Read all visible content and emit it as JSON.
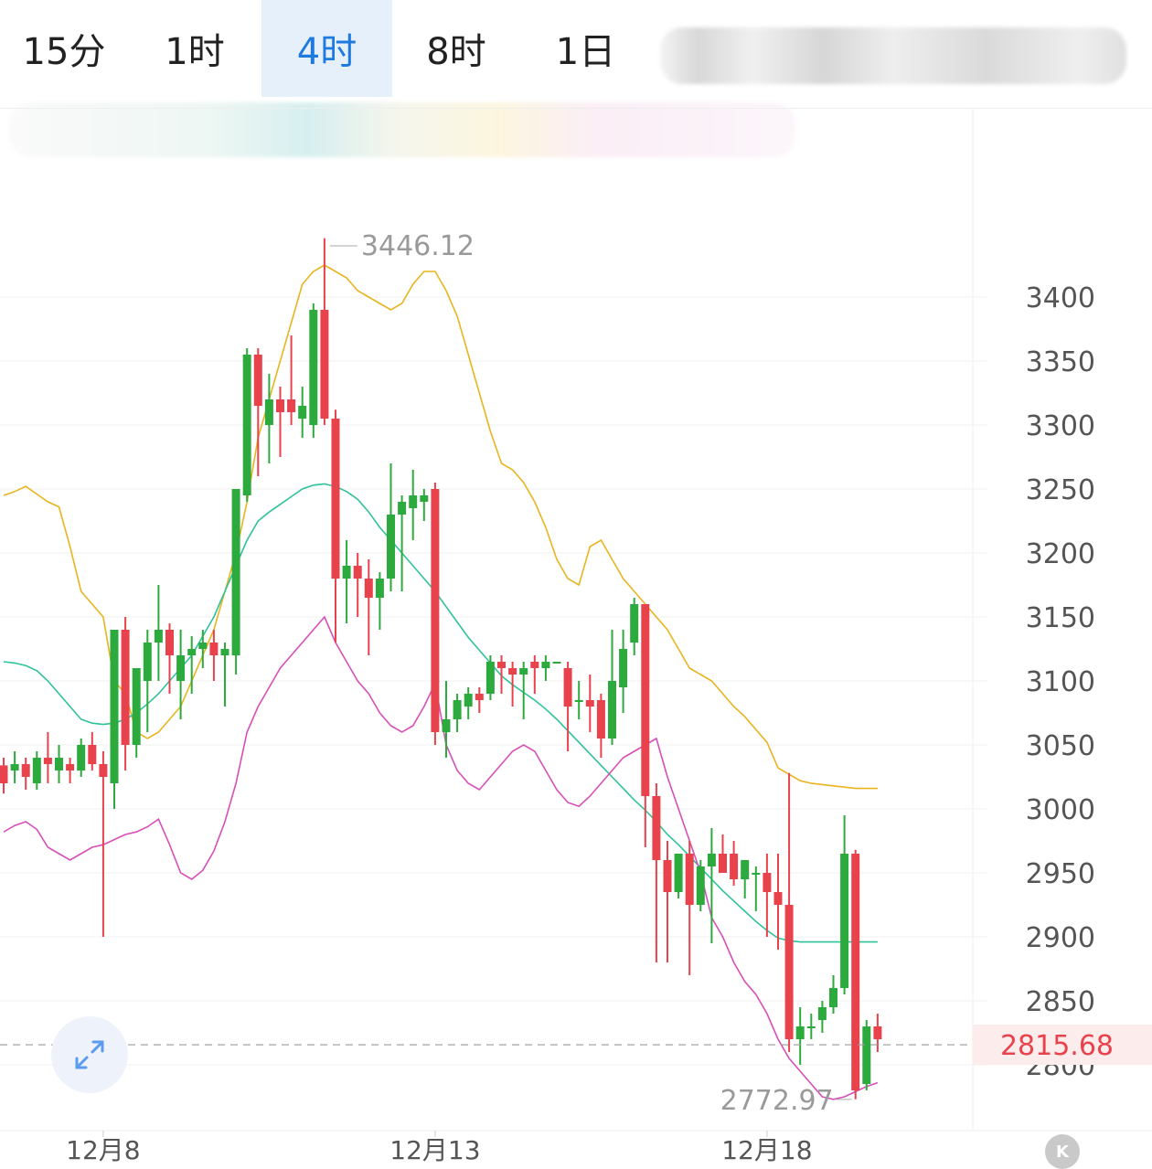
{
  "tabs": [
    {
      "label": "15分",
      "active": false
    },
    {
      "label": "1时",
      "active": false
    },
    {
      "label": "4时",
      "active": true
    },
    {
      "label": "8时",
      "active": false
    },
    {
      "label": "1日",
      "active": false
    }
  ],
  "colors": {
    "up": "#2daa3d",
    "down": "#e8424c",
    "upper_band": "#e8b41f",
    "middle_band": "#2ec29b",
    "lower_band": "#d84fb8",
    "active_tab": "#1f7ae0",
    "price_label": "#e8424c"
  },
  "icons": {
    "expand": "expand-arrows-icon",
    "logo": "k-logo-icon"
  },
  "chart_data": {
    "type": "candlestick",
    "ylim": [
      2740,
      3470
    ],
    "y_ticks": [
      2800,
      2850,
      2900,
      2950,
      3000,
      3050,
      3100,
      3150,
      3200,
      3250,
      3300,
      3350,
      3400
    ],
    "x_tick_labels": [
      {
        "label": "12月8",
        "index": 9
      },
      {
        "label": "12月13",
        "index": 39
      },
      {
        "label": "12月18",
        "index": 69
      }
    ],
    "grid": true,
    "current_price": "2815.68",
    "high_marker": {
      "value": "3446.12",
      "index": 29
    },
    "low_marker": {
      "value": "2772.97",
      "index": 77
    },
    "candles": [
      [
        3034,
        3040,
        3012,
        3020
      ],
      [
        3030,
        3045,
        3020,
        3035
      ],
      [
        3035,
        3040,
        3015,
        3025
      ],
      [
        3020,
        3045,
        3015,
        3040
      ],
      [
        3040,
        3060,
        3020,
        3035
      ],
      [
        3030,
        3050,
        3020,
        3040
      ],
      [
        3035,
        3040,
        3020,
        3030
      ],
      [
        3030,
        3055,
        3025,
        3050
      ],
      [
        3050,
        3060,
        3030,
        3035
      ],
      [
        3035,
        3045,
        2900,
        3025
      ],
      [
        3020,
        3140,
        3000,
        3140
      ],
      [
        3140,
        3150,
        3030,
        3050
      ],
      [
        3050,
        3110,
        3040,
        3110
      ],
      [
        3100,
        3140,
        3060,
        3130
      ],
      [
        3130,
        3175,
        3100,
        3140
      ],
      [
        3140,
        3145,
        3090,
        3120
      ],
      [
        3100,
        3140,
        3070,
        3120
      ],
      [
        3120,
        3135,
        3090,
        3125
      ],
      [
        3125,
        3140,
        3110,
        3130
      ],
      [
        3130,
        3140,
        3100,
        3120
      ],
      [
        3120,
        3130,
        3080,
        3125
      ],
      [
        3120,
        3250,
        3105,
        3250
      ],
      [
        3245,
        3360,
        3240,
        3355
      ],
      [
        3355,
        3360,
        3260,
        3315
      ],
      [
        3300,
        3340,
        3270,
        3320
      ],
      [
        3320,
        3330,
        3275,
        3310
      ],
      [
        3320,
        3370,
        3300,
        3310
      ],
      [
        3305,
        3330,
        3290,
        3315
      ],
      [
        3300,
        3395,
        3290,
        3390
      ],
      [
        3390,
        3446,
        3300,
        3305
      ],
      [
        3305,
        3312,
        3130,
        3180
      ],
      [
        3180,
        3210,
        3145,
        3190
      ],
      [
        3190,
        3200,
        3150,
        3180
      ],
      [
        3180,
        3195,
        3120,
        3165
      ],
      [
        3165,
        3185,
        3140,
        3180
      ],
      [
        3180,
        3270,
        3170,
        3230
      ],
      [
        3230,
        3245,
        3170,
        3240
      ],
      [
        3235,
        3265,
        3210,
        3245
      ],
      [
        3240,
        3250,
        3225,
        3245
      ],
      [
        3250,
        3255,
        3050,
        3060
      ],
      [
        3060,
        3100,
        3040,
        3070
      ],
      [
        3070,
        3090,
        3060,
        3085
      ],
      [
        3080,
        3095,
        3070,
        3090
      ],
      [
        3090,
        3095,
        3075,
        3085
      ],
      [
        3090,
        3120,
        3085,
        3115
      ],
      [
        3115,
        3120,
        3090,
        3110
      ],
      [
        3110,
        3115,
        3080,
        3105
      ],
      [
        3105,
        3115,
        3070,
        3110
      ],
      [
        3115,
        3120,
        3090,
        3110
      ],
      [
        3110,
        3120,
        3100,
        3115
      ],
      [
        3115,
        3110,
        3110,
        3115
      ],
      [
        3110,
        3115,
        3045,
        3080
      ],
      [
        3085,
        3100,
        3070,
        3085
      ],
      [
        3085,
        3105,
        3060,
        3080
      ],
      [
        3085,
        3090,
        3040,
        3055
      ],
      [
        3055,
        3140,
        3050,
        3100
      ],
      [
        3095,
        3140,
        3075,
        3125
      ],
      [
        3130,
        3165,
        3120,
        3160
      ],
      [
        3160,
        3160,
        2970,
        3010
      ],
      [
        3010,
        3020,
        2880,
        2960
      ],
      [
        2960,
        2975,
        2880,
        2935
      ],
      [
        2935,
        2965,
        2930,
        2965
      ],
      [
        2965,
        2975,
        2870,
        2925
      ],
      [
        2925,
        2960,
        2920,
        2955
      ],
      [
        2955,
        2985,
        2895,
        2965
      ],
      [
        2965,
        2980,
        2950,
        2950
      ],
      [
        2965,
        2975,
        2940,
        2945
      ],
      [
        2945,
        2960,
        2930,
        2960
      ],
      [
        2950,
        2955,
        2920,
        2950
      ],
      [
        2950,
        2965,
        2900,
        2935
      ],
      [
        2935,
        2965,
        2890,
        2925
      ],
      [
        2925,
        3028,
        2810,
        2820
      ],
      [
        2820,
        2845,
        2800,
        2830
      ],
      [
        2830,
        2840,
        2820,
        2830
      ],
      [
        2835,
        2850,
        2825,
        2845
      ],
      [
        2845,
        2870,
        2840,
        2860
      ],
      [
        2860,
        2995,
        2855,
        2965
      ],
      [
        2965,
        2968,
        2773,
        2780
      ],
      [
        2785,
        2835,
        2780,
        2830
      ],
      [
        2830,
        2840,
        2810,
        2820
      ]
    ],
    "bands": {
      "upper": [
        3245,
        3248,
        3252,
        3246,
        3240,
        3236,
        3205,
        3170,
        3160,
        3150,
        3100,
        3090,
        3060,
        3055,
        3060,
        3070,
        3080,
        3100,
        3120,
        3140,
        3170,
        3200,
        3240,
        3290,
        3320,
        3350,
        3380,
        3410,
        3420,
        3425,
        3420,
        3415,
        3405,
        3400,
        3395,
        3390,
        3395,
        3410,
        3420,
        3420,
        3405,
        3385,
        3355,
        3325,
        3295,
        3270,
        3265,
        3255,
        3240,
        3220,
        3195,
        3180,
        3175,
        3205,
        3210,
        3195,
        3180,
        3170,
        3160,
        3150,
        3140,
        3125,
        3110,
        3105,
        3100,
        3090,
        3080,
        3072,
        3062,
        3052,
        3032,
        3027,
        3022,
        3020,
        3019,
        3018,
        3017,
        3016,
        3016,
        3016
      ],
      "middle": [
        3115,
        3114,
        3112,
        3108,
        3100,
        3090,
        3080,
        3070,
        3067,
        3066,
        3067,
        3070,
        3075,
        3082,
        3090,
        3100,
        3110,
        3120,
        3135,
        3150,
        3170,
        3190,
        3210,
        3225,
        3232,
        3238,
        3244,
        3250,
        3253,
        3254,
        3252,
        3248,
        3242,
        3232,
        3220,
        3210,
        3200,
        3190,
        3180,
        3170,
        3158,
        3146,
        3134,
        3124,
        3114,
        3104,
        3097,
        3091,
        3085,
        3078,
        3070,
        3061,
        3052,
        3043,
        3034,
        3025,
        3016,
        3007,
        2999,
        2990,
        2980,
        2972,
        2963,
        2954,
        2945,
        2936,
        2928,
        2920,
        2912,
        2905,
        2899,
        2897,
        2896,
        2896,
        2896,
        2896,
        2896,
        2896,
        2896,
        2896
      ],
      "lower": [
        2982,
        2987,
        2990,
        2984,
        2970,
        2965,
        2960,
        2965,
        2970,
        2972,
        2976,
        2980,
        2982,
        2986,
        2992,
        2972,
        2950,
        2945,
        2952,
        2967,
        2990,
        3020,
        3060,
        3080,
        3095,
        3110,
        3120,
        3130,
        3140,
        3150,
        3130,
        3115,
        3100,
        3090,
        3075,
        3065,
        3060,
        3065,
        3080,
        3098,
        3050,
        3030,
        3020,
        3015,
        3025,
        3035,
        3045,
        3050,
        3045,
        3030,
        3015,
        3005,
        3002,
        3010,
        3020,
        3030,
        3040,
        3045,
        3050,
        3055,
        3025,
        3000,
        2975,
        2950,
        2915,
        2900,
        2880,
        2865,
        2855,
        2840,
        2820,
        2805,
        2795,
        2785,
        2775,
        2773,
        2775,
        2779,
        2783,
        2786
      ]
    }
  }
}
